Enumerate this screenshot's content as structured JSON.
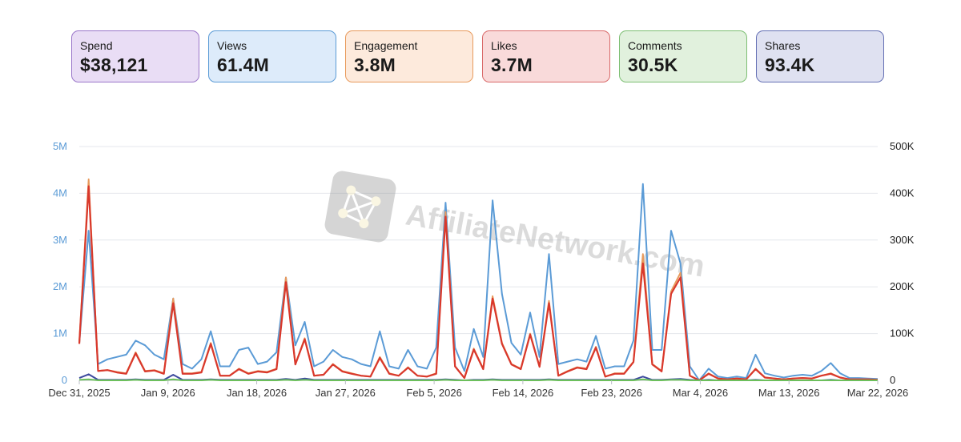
{
  "metrics": [
    {
      "label": "Spend",
      "value": "$38,121",
      "bg": "#e9ddf5",
      "border": "#9a76c9"
    },
    {
      "label": "Views",
      "value": "61.4M",
      "bg": "#ddebfa",
      "border": "#5b9bd6"
    },
    {
      "label": "Engagement",
      "value": "3.8M",
      "bg": "#fdeadc",
      "border": "#e89a5c"
    },
    {
      "label": "Likes",
      "value": "3.7M",
      "bg": "#f9dada",
      "border": "#d96a6a"
    },
    {
      "label": "Comments",
      "value": "30.5K",
      "bg": "#e1f1dd",
      "border": "#7dbf73"
    },
    {
      "label": "Shares",
      "value": "93.4K",
      "bg": "#dfe1f1",
      "border": "#6570b5"
    }
  ],
  "watermark": {
    "text": "AffiliateNetwork.com"
  },
  "chart_data": {
    "type": "line",
    "title": "",
    "x_labels": [
      "Dec 31, 2025",
      "Jan 9, 2026",
      "Jan 18, 2026",
      "Jan 27, 2026",
      "Feb 5, 2026",
      "Feb 14, 2026",
      "Feb 23, 2026",
      "Mar 4, 2026",
      "Mar 13, 2026",
      "Mar 22, 2026"
    ],
    "left_axis": {
      "ticks": [
        "0",
        "1M",
        "2M",
        "3M",
        "4M",
        "5M"
      ],
      "color": "#5b9bd6",
      "ylim": [
        0,
        5000000
      ]
    },
    "right_axis": {
      "ticks": [
        "0",
        "100K",
        "200K",
        "300K",
        "400K",
        "500K"
      ],
      "color": "#222222",
      "ylim": [
        0,
        500000
      ]
    },
    "days": 86,
    "series": [
      {
        "name": "Views",
        "axis": "left",
        "color": "#5b9bd6",
        "values": [
          0.8,
          3.2,
          0.35,
          0.45,
          0.5,
          0.55,
          0.85,
          0.75,
          0.55,
          0.45,
          1.75,
          0.35,
          0.25,
          0.45,
          1.05,
          0.3,
          0.3,
          0.65,
          0.7,
          0.35,
          0.4,
          0.6,
          2.2,
          0.75,
          1.25,
          0.3,
          0.4,
          0.65,
          0.5,
          0.45,
          0.35,
          0.3,
          1.05,
          0.3,
          0.25,
          0.65,
          0.3,
          0.25,
          0.7,
          3.8,
          0.7,
          0.2,
          1.1,
          0.5,
          3.85,
          1.85,
          0.8,
          0.55,
          1.45,
          0.5,
          2.7,
          0.35,
          0.4,
          0.45,
          0.4,
          0.95,
          0.25,
          0.3,
          0.3,
          0.85,
          4.2,
          0.65,
          0.65,
          3.2,
          2.5,
          0.3,
          0,
          0.25,
          0.08,
          0.05,
          0.08,
          0.05,
          0.55,
          0.15,
          0.1,
          0.06,
          0.1,
          0.12,
          0.1,
          0.2,
          0.37,
          0.15,
          0.05,
          0.05,
          0.04,
          0.03
        ],
        "scale": 1000000
      },
      {
        "name": "Engagement",
        "axis": "left",
        "color": "#e89a5c",
        "values": [
          0.8,
          4.3,
          0.2,
          0.22,
          0.18,
          0.15,
          0.6,
          0.2,
          0.22,
          0.15,
          1.75,
          0.15,
          0.15,
          0.18,
          0.8,
          0.1,
          0.1,
          0.25,
          0.15,
          0.2,
          0.18,
          0.25,
          2.2,
          0.35,
          0.9,
          0.1,
          0.12,
          0.35,
          0.2,
          0.15,
          0.1,
          0.08,
          0.5,
          0.15,
          0.1,
          0.28,
          0.1,
          0.08,
          0.15,
          3.6,
          0.3,
          0.05,
          0.68,
          0.25,
          1.8,
          0.8,
          0.35,
          0.25,
          1.0,
          0.3,
          1.7,
          0.1,
          0.2,
          0.28,
          0.25,
          0.72,
          0.08,
          0.15,
          0.15,
          0.4,
          2.7,
          0.35,
          0.2,
          1.9,
          2.3,
          0.1,
          0,
          0.15,
          0.04,
          0.02,
          0.04,
          0.02,
          0.25,
          0.06,
          0.04,
          0.02,
          0.04,
          0.05,
          0.04,
          0.1,
          0.15,
          0.06,
          0.02,
          0.02,
          0.02,
          0.01
        ],
        "scale": 1000000
      },
      {
        "name": "Likes",
        "axis": "left",
        "color": "#d9382c",
        "values": [
          0.78,
          4.15,
          0.2,
          0.22,
          0.17,
          0.14,
          0.58,
          0.19,
          0.21,
          0.14,
          1.65,
          0.14,
          0.14,
          0.17,
          0.78,
          0.1,
          0.1,
          0.24,
          0.14,
          0.19,
          0.17,
          0.24,
          2.1,
          0.34,
          0.88,
          0.1,
          0.12,
          0.34,
          0.19,
          0.14,
          0.1,
          0.08,
          0.48,
          0.14,
          0.1,
          0.27,
          0.1,
          0.08,
          0.14,
          3.5,
          0.3,
          0.05,
          0.66,
          0.24,
          1.75,
          0.78,
          0.34,
          0.24,
          0.98,
          0.29,
          1.65,
          0.1,
          0.19,
          0.27,
          0.24,
          0.7,
          0.08,
          0.14,
          0.14,
          0.39,
          2.5,
          0.34,
          0.19,
          1.85,
          2.2,
          0.1,
          0,
          0.14,
          0.04,
          0.02,
          0.04,
          0.02,
          0.24,
          0.06,
          0.04,
          0.02,
          0.04,
          0.05,
          0.04,
          0.1,
          0.14,
          0.06,
          0.02,
          0.02,
          0.02,
          0.01
        ],
        "scale": 1000000
      },
      {
        "name": "Shares",
        "axis": "right",
        "color": "#3d4a9e",
        "values": [
          5,
          13,
          1,
          1,
          1,
          1,
          2,
          1,
          1,
          1,
          12,
          1,
          1,
          1,
          2,
          1,
          1,
          1,
          1,
          1,
          1,
          1,
          3,
          1,
          4,
          1,
          1,
          1,
          1,
          1,
          1,
          1,
          1,
          1,
          1,
          1,
          1,
          1,
          1,
          2,
          1,
          0,
          1,
          1,
          2,
          1,
          1,
          1,
          1,
          1,
          2,
          1,
          1,
          1,
          1,
          1,
          1,
          1,
          1,
          1,
          8,
          1,
          1,
          2,
          3,
          1,
          0,
          1,
          0,
          0,
          0,
          0,
          1,
          0,
          0,
          0,
          0,
          0,
          0,
          0,
          1,
          0,
          0,
          0,
          0,
          0
        ],
        "scale": 1000
      },
      {
        "name": "Comments",
        "axis": "right",
        "color": "#6cbf5c",
        "values": [
          1,
          2,
          0,
          0,
          0,
          0,
          1,
          0,
          0,
          0,
          2,
          0,
          0,
          0,
          1,
          0,
          0,
          0,
          0,
          0,
          0,
          0,
          1,
          0,
          1,
          0,
          0,
          0,
          0,
          0,
          0,
          0,
          0,
          0,
          0,
          0,
          0,
          0,
          0,
          1,
          0,
          0,
          0,
          0,
          1,
          0,
          0,
          0,
          0,
          0,
          1,
          0,
          0,
          0,
          0,
          0,
          0,
          0,
          0,
          0,
          2,
          0,
          0,
          1,
          1,
          0,
          0,
          0,
          0,
          0,
          0,
          0,
          0,
          0,
          0,
          0,
          0,
          0,
          0,
          0,
          0,
          0,
          0,
          0,
          0,
          0
        ],
        "scale": 1000
      }
    ]
  }
}
